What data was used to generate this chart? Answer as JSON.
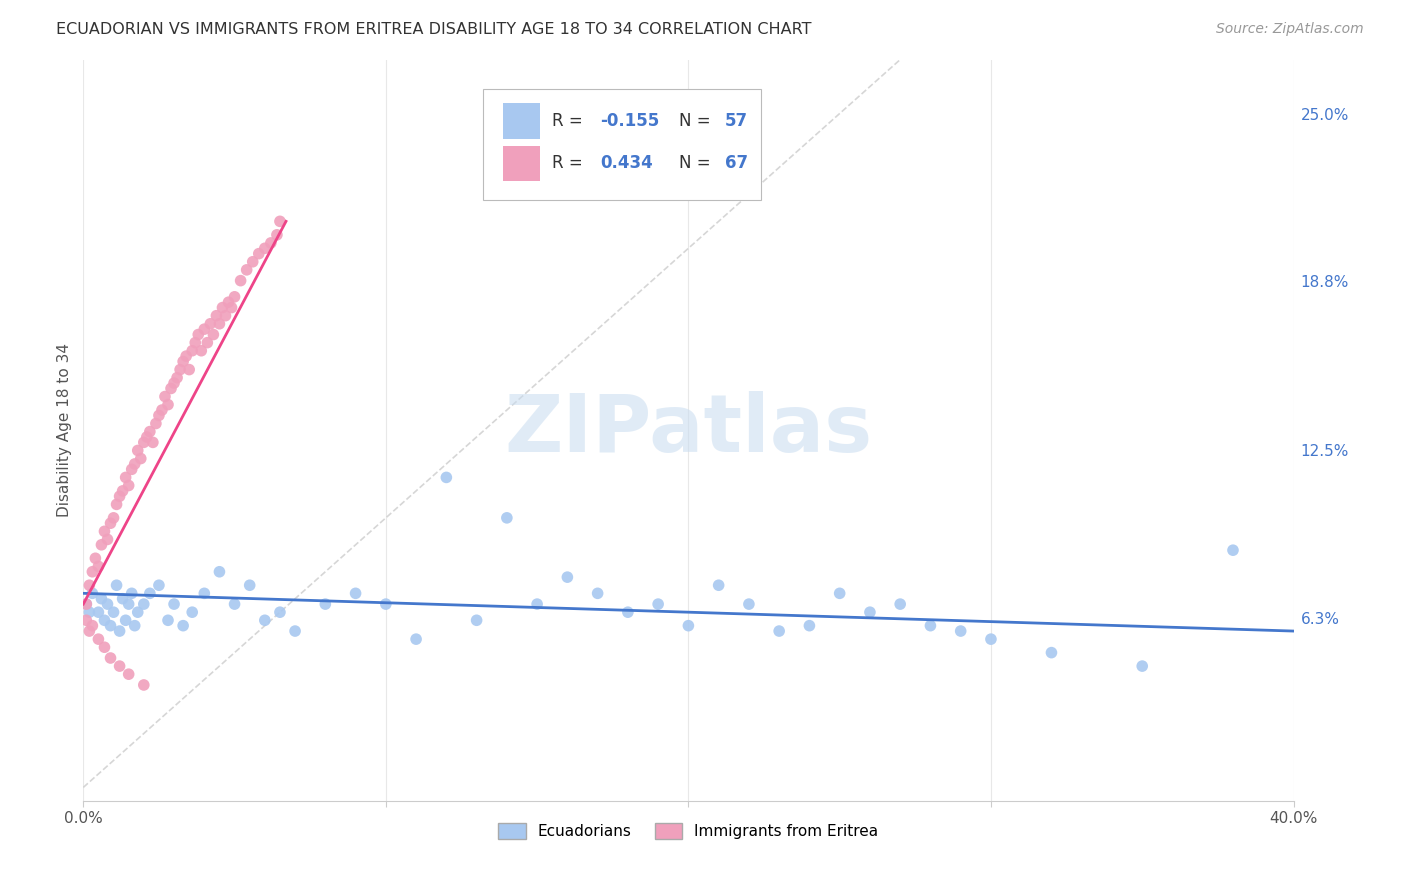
{
  "title": "ECUADORIAN VS IMMIGRANTS FROM ERITREA DISABILITY AGE 18 TO 34 CORRELATION CHART",
  "source": "Source: ZipAtlas.com",
  "ylabel": "Disability Age 18 to 34",
  "xlim": [
    0.0,
    0.4
  ],
  "ylim": [
    -0.005,
    0.27
  ],
  "xticks": [
    0.0,
    0.1,
    0.2,
    0.3,
    0.4
  ],
  "xticklabels": [
    "0.0%",
    "",
    "",
    "",
    "40.0%"
  ],
  "ytick_positions": [
    0.063,
    0.125,
    0.188,
    0.25
  ],
  "ytick_labels": [
    "6.3%",
    "12.5%",
    "18.8%",
    "25.0%"
  ],
  "legend_labels": [
    "Ecuadorians",
    "Immigrants from Eritrea"
  ],
  "blue_color": "#A8C8F0",
  "pink_color": "#F0A0BC",
  "blue_line_color": "#4477CC",
  "pink_line_color": "#EE4488",
  "watermark": "ZIPatlas",
  "blue_scatter_x": [
    0.001,
    0.003,
    0.005,
    0.006,
    0.007,
    0.008,
    0.009,
    0.01,
    0.011,
    0.012,
    0.013,
    0.014,
    0.015,
    0.016,
    0.017,
    0.018,
    0.02,
    0.022,
    0.025,
    0.028,
    0.03,
    0.033,
    0.036,
    0.04,
    0.045,
    0.05,
    0.055,
    0.06,
    0.065,
    0.07,
    0.08,
    0.09,
    0.1,
    0.11,
    0.12,
    0.13,
    0.14,
    0.15,
    0.16,
    0.17,
    0.18,
    0.19,
    0.2,
    0.21,
    0.22,
    0.23,
    0.24,
    0.25,
    0.26,
    0.27,
    0.28,
    0.29,
    0.3,
    0.32,
    0.35,
    0.38,
    0.002
  ],
  "blue_scatter_y": [
    0.068,
    0.072,
    0.065,
    0.07,
    0.062,
    0.068,
    0.06,
    0.065,
    0.075,
    0.058,
    0.07,
    0.062,
    0.068,
    0.072,
    0.06,
    0.065,
    0.068,
    0.072,
    0.075,
    0.062,
    0.068,
    0.06,
    0.065,
    0.072,
    0.08,
    0.068,
    0.075,
    0.062,
    0.065,
    0.058,
    0.068,
    0.072,
    0.068,
    0.055,
    0.115,
    0.062,
    0.1,
    0.068,
    0.078,
    0.072,
    0.065,
    0.068,
    0.06,
    0.075,
    0.068,
    0.058,
    0.06,
    0.072,
    0.065,
    0.068,
    0.06,
    0.058,
    0.055,
    0.05,
    0.045,
    0.088,
    0.065
  ],
  "pink_scatter_x": [
    0.001,
    0.002,
    0.003,
    0.004,
    0.005,
    0.006,
    0.007,
    0.008,
    0.009,
    0.01,
    0.011,
    0.012,
    0.013,
    0.014,
    0.015,
    0.016,
    0.017,
    0.018,
    0.019,
    0.02,
    0.021,
    0.022,
    0.023,
    0.024,
    0.025,
    0.026,
    0.027,
    0.028,
    0.029,
    0.03,
    0.031,
    0.032,
    0.033,
    0.034,
    0.035,
    0.036,
    0.037,
    0.038,
    0.039,
    0.04,
    0.041,
    0.042,
    0.043,
    0.044,
    0.045,
    0.046,
    0.047,
    0.048,
    0.049,
    0.05,
    0.052,
    0.054,
    0.056,
    0.058,
    0.06,
    0.062,
    0.064,
    0.001,
    0.002,
    0.003,
    0.005,
    0.007,
    0.009,
    0.012,
    0.015,
    0.02,
    0.065
  ],
  "pink_scatter_y": [
    0.068,
    0.075,
    0.08,
    0.085,
    0.082,
    0.09,
    0.095,
    0.092,
    0.098,
    0.1,
    0.105,
    0.108,
    0.11,
    0.115,
    0.112,
    0.118,
    0.12,
    0.125,
    0.122,
    0.128,
    0.13,
    0.132,
    0.128,
    0.135,
    0.138,
    0.14,
    0.145,
    0.142,
    0.148,
    0.15,
    0.152,
    0.155,
    0.158,
    0.16,
    0.155,
    0.162,
    0.165,
    0.168,
    0.162,
    0.17,
    0.165,
    0.172,
    0.168,
    0.175,
    0.172,
    0.178,
    0.175,
    0.18,
    0.178,
    0.182,
    0.188,
    0.192,
    0.195,
    0.198,
    0.2,
    0.202,
    0.205,
    0.062,
    0.058,
    0.06,
    0.055,
    0.052,
    0.048,
    0.045,
    0.042,
    0.038,
    0.21
  ],
  "blue_line_x": [
    0.0,
    0.4
  ],
  "blue_line_y": [
    0.072,
    0.058
  ],
  "pink_line_x": [
    0.0,
    0.067
  ],
  "pink_line_y": [
    0.068,
    0.21
  ],
  "diag_line_x": [
    0.0,
    0.27
  ],
  "diag_line_y": [
    0.0,
    0.27
  ]
}
